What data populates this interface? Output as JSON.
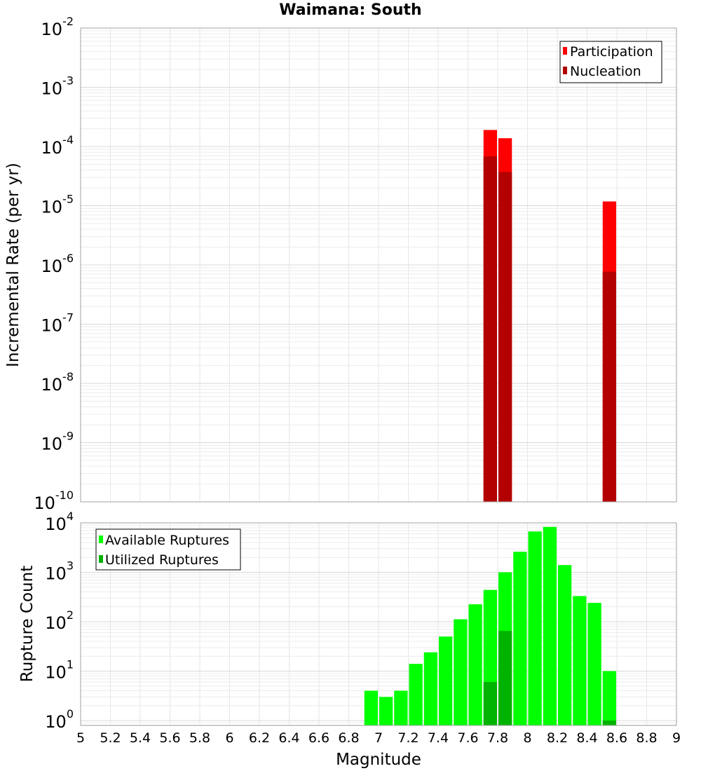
{
  "title": "Waimana: South",
  "chart_data": [
    {
      "type": "bar",
      "ylabel": "Incremental Rate (per yr)",
      "xlim": [
        5,
        9
      ],
      "ylim_log10": [
        -10,
        -2
      ],
      "yscale": "log",
      "bin_width": 0.1,
      "y_ticks": [
        {
          "base": "10",
          "exp": "-2"
        },
        {
          "base": "10",
          "exp": "-3"
        },
        {
          "base": "10",
          "exp": "-4"
        },
        {
          "base": "10",
          "exp": "-5"
        },
        {
          "base": "10",
          "exp": "-6"
        },
        {
          "base": "10",
          "exp": "-7"
        },
        {
          "base": "10",
          "exp": "-8"
        },
        {
          "base": "10",
          "exp": "-9"
        },
        {
          "base": "10",
          "exp": "-10"
        }
      ],
      "legend": {
        "position": "top-right",
        "entries": [
          "Participation",
          "Nucleation"
        ]
      },
      "series": [
        {
          "name": "Participation",
          "color": "#ff0000",
          "x": [
            7.75,
            7.85,
            8.55
          ],
          "values": [
            0.00019,
            0.000138,
            1.18e-05
          ]
        },
        {
          "name": "Nucleation",
          "color": "#b30000",
          "x": [
            7.75,
            7.85,
            8.55
          ],
          "values": [
            6.8e-05,
            3.7e-05,
            7.7e-07
          ]
        }
      ]
    },
    {
      "type": "bar",
      "xlabel": "Magnitude",
      "ylabel": "Rupture Count",
      "xlim": [
        5,
        9
      ],
      "ylim_log10": [
        -0.1,
        4
      ],
      "yscale": "log",
      "bin_width": 0.1,
      "x_ticks": [
        "5",
        "5.2",
        "5.4",
        "5.6",
        "5.8",
        "6",
        "6.2",
        "6.4",
        "6.6",
        "6.8",
        "7",
        "7.2",
        "7.4",
        "7.6",
        "7.8",
        "8",
        "8.2",
        "8.4",
        "8.6",
        "8.8",
        "9"
      ],
      "y_ticks": [
        {
          "base": "10",
          "exp": "4"
        },
        {
          "base": "10",
          "exp": "3"
        },
        {
          "base": "10",
          "exp": "2"
        },
        {
          "base": "10",
          "exp": "1"
        },
        {
          "base": "10",
          "exp": "0"
        }
      ],
      "legend": {
        "position": "top-left",
        "entries": [
          "Available Ruptures",
          "Utilized Ruptures"
        ]
      },
      "series": [
        {
          "name": "Available Ruptures",
          "color": "#00ff00",
          "x": [
            6.95,
            7.05,
            7.15,
            7.25,
            7.35,
            7.45,
            7.55,
            7.65,
            7.75,
            7.85,
            7.95,
            8.05,
            8.15,
            8.25,
            8.35,
            8.45,
            8.55
          ],
          "values": [
            4,
            3,
            4,
            14,
            24,
            50,
            112,
            225,
            440,
            1000,
            2600,
            6700,
            8300,
            1400,
            330,
            240,
            10
          ]
        },
        {
          "name": "Utilized Ruptures",
          "color": "#00b300",
          "x": [
            7.75,
            7.85,
            8.55
          ],
          "values": [
            6,
            65,
            1
          ]
        }
      ]
    }
  ]
}
